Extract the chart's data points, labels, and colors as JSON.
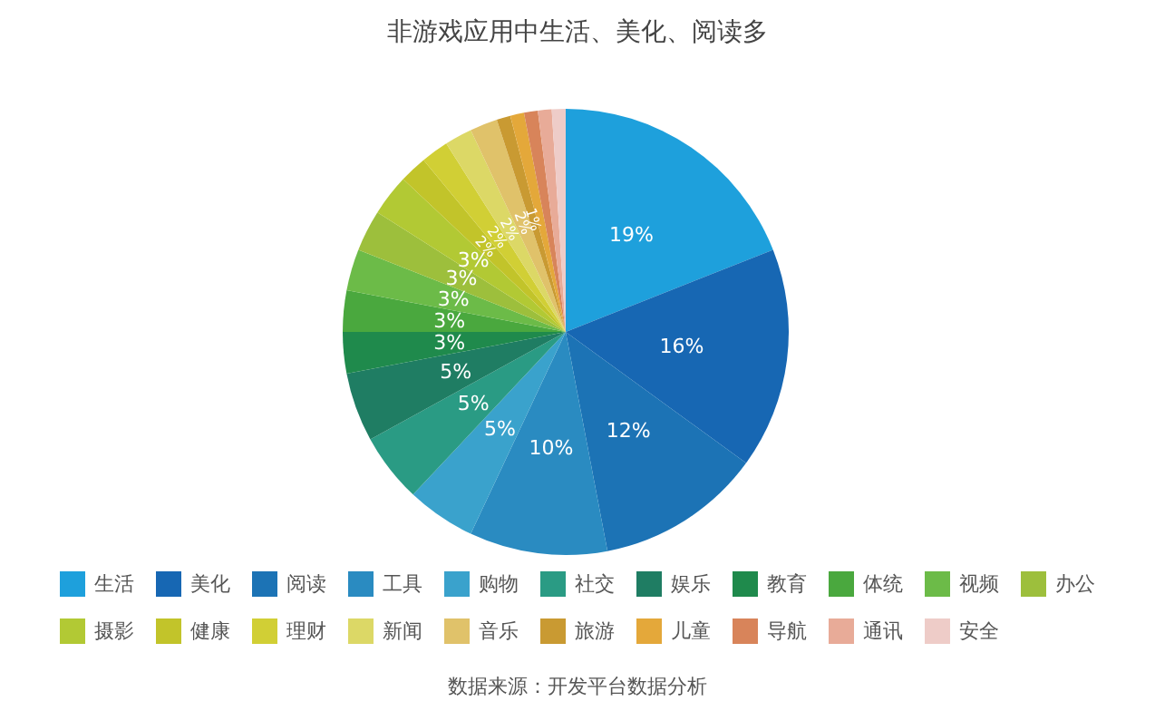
{
  "chart_data": {
    "type": "pie",
    "title": "非游戏应用中生活、美化、阅读多",
    "categories": [
      "生活",
      "美化",
      "阅读",
      "工具",
      "购物",
      "社交",
      "娱乐",
      "教育",
      "体统",
      "视频",
      "办公",
      "摄影",
      "健康",
      "理财",
      "新闻",
      "音乐",
      "旅游",
      "儿童",
      "导航",
      "通讯",
      "安全"
    ],
    "values": [
      19,
      16,
      12,
      10,
      5,
      5,
      5,
      3,
      3,
      3,
      3,
      3,
      2,
      2,
      2,
      2,
      1,
      1,
      1,
      1,
      1
    ],
    "value_labels": [
      "19%",
      "16%",
      "12%",
      "10%",
      "5%",
      "5%",
      "5%",
      "3%",
      "3%",
      "3%",
      "3%",
      "3%",
      "2%",
      "2%",
      "2%",
      "2%",
      "1%",
      null,
      null,
      null,
      null
    ],
    "colors": [
      "#1ea0dc",
      "#1767b3",
      "#1c73b5",
      "#2a8bc1",
      "#3aa2cc",
      "#2a9b84",
      "#1f7d63",
      "#1f8a4c",
      "#4aa83e",
      "#6cbb48",
      "#9dbf3c",
      "#b2c934",
      "#c2c42a",
      "#d1cf35",
      "#dcd866",
      "#e0c26a",
      "#c99a32",
      "#e4a83a",
      "#d8845a",
      "#e8ab98",
      "#eeccc8"
    ],
    "legend": "bottom",
    "annotations": [
      "数据来源：开发平台数据分析"
    ]
  }
}
